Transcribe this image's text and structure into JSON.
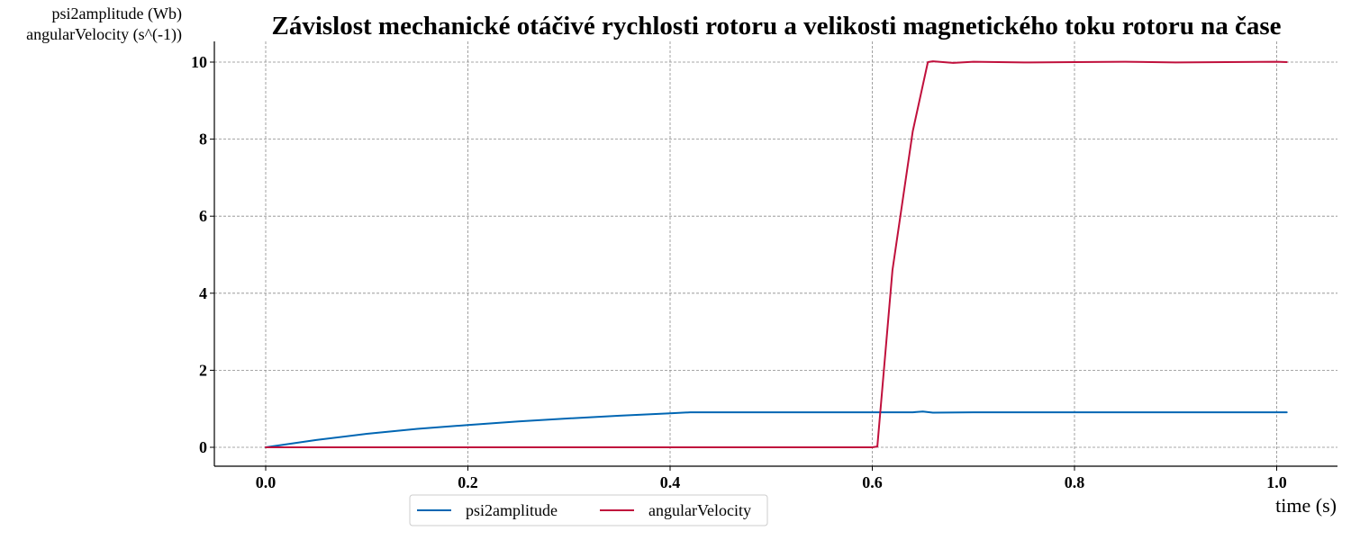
{
  "chart_data": {
    "type": "line",
    "title": "Závislost mechanické otáčivé rychlosti rotoru a velikosti magnetického toku rotoru na čase",
    "xlabel": "time (s)",
    "ylabel_lines": [
      "psi2amplitude (Wb)",
      "angularVelocity (s^(-1))"
    ],
    "xlim": [
      -0.05,
      1.06
    ],
    "ylim": [
      -0.5,
      10.55
    ],
    "xticks": [
      0.0,
      0.2,
      0.4,
      0.6,
      0.8,
      1.0
    ],
    "xtick_labels": [
      "0.0",
      "0.2",
      "0.4",
      "0.6",
      "0.8",
      "1.0"
    ],
    "yticks": [
      0,
      2,
      4,
      6,
      8,
      10
    ],
    "ytick_labels": [
      "0",
      "2",
      "4",
      "6",
      "8",
      "10"
    ],
    "grid": true,
    "legend_position": "bottom-left-outside",
    "series": [
      {
        "name": "psi2amplitude",
        "color": "#0066b3",
        "x": [
          0.0,
          0.05,
          0.1,
          0.15,
          0.2,
          0.25,
          0.3,
          0.35,
          0.4,
          0.42,
          0.5,
          0.6,
          0.64,
          0.65,
          0.66,
          0.7,
          0.8,
          0.9,
          1.0,
          1.01
        ],
        "y": [
          0.0,
          0.19,
          0.35,
          0.48,
          0.58,
          0.67,
          0.75,
          0.82,
          0.88,
          0.91,
          0.91,
          0.91,
          0.91,
          0.93,
          0.9,
          0.91,
          0.91,
          0.91,
          0.91,
          0.91
        ]
      },
      {
        "name": "angularVelocity",
        "color": "#c0103c",
        "x": [
          0.0,
          0.1,
          0.2,
          0.3,
          0.4,
          0.5,
          0.6,
          0.605,
          0.62,
          0.64,
          0.655,
          0.66,
          0.68,
          0.7,
          0.75,
          0.8,
          0.85,
          0.9,
          0.95,
          1.0,
          1.01
        ],
        "y": [
          0.0,
          0.0,
          0.0,
          0.0,
          0.0,
          0.0,
          0.0,
          0.02,
          4.6,
          8.2,
          10.0,
          10.02,
          9.98,
          10.01,
          9.99,
          10.0,
          10.01,
          9.99,
          10.0,
          10.01,
          10.0
        ]
      }
    ]
  }
}
